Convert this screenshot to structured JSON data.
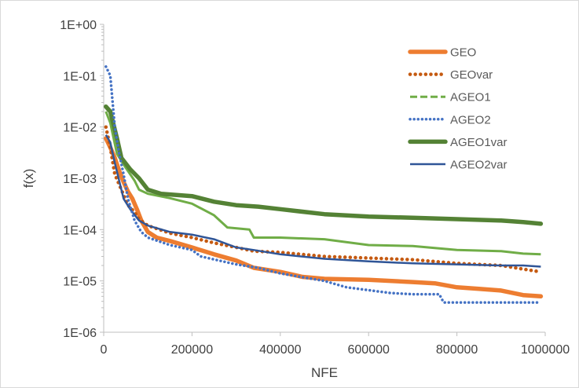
{
  "chart_data": {
    "type": "line",
    "title": "",
    "xlabel": "NFE",
    "ylabel": "f(x)",
    "xlim": [
      0,
      1000000
    ],
    "ylim": [
      1e-06,
      1
    ],
    "yscale": "log",
    "grid": false,
    "legend_position": "top-right",
    "x_ticks": [
      "0",
      "200000",
      "400000",
      "600000",
      "800000",
      "1000000"
    ],
    "y_ticks": [
      "1E-06",
      "1E-05",
      "1E-04",
      "1E-03",
      "1E-02",
      "1E-01",
      "1E+00"
    ],
    "series": [
      {
        "name": "GEO",
        "color": "#ed7d31",
        "style": "solid-thick",
        "points": [
          [
            5000,
            0.006
          ],
          [
            15000,
            0.004
          ],
          [
            25000,
            0.0025
          ],
          [
            35000,
            0.0014
          ],
          [
            45000,
            0.00085
          ],
          [
            55000,
            0.00055
          ],
          [
            65000,
            0.0004
          ],
          [
            75000,
            0.00025
          ],
          [
            85000,
            0.00015
          ],
          [
            100000,
            9e-05
          ],
          [
            120000,
            7e-05
          ],
          [
            150000,
            6e-05
          ],
          [
            200000,
            4.5e-05
          ],
          [
            250000,
            3.3e-05
          ],
          [
            300000,
            2.5e-05
          ],
          [
            340000,
            1.8e-05
          ],
          [
            400000,
            1.5e-05
          ],
          [
            450000,
            1.2e-05
          ],
          [
            500000,
            1.1e-05
          ],
          [
            600000,
            1.05e-05
          ],
          [
            700000,
            9.5e-06
          ],
          [
            750000,
            9e-06
          ],
          [
            800000,
            7.5e-06
          ],
          [
            850000,
            7e-06
          ],
          [
            900000,
            6.5e-06
          ],
          [
            950000,
            5.3e-06
          ],
          [
            990000,
            5e-06
          ]
        ]
      },
      {
        "name": "GEOvar",
        "color": "#c55a11",
        "style": "dotted",
        "points": [
          [
            5000,
            0.01
          ],
          [
            15000,
            0.004
          ],
          [
            25000,
            0.0012
          ],
          [
            40000,
            0.0006
          ],
          [
            55000,
            0.0003
          ],
          [
            70000,
            0.00022
          ],
          [
            80000,
            0.00016
          ],
          [
            100000,
            0.00012
          ],
          [
            150000,
            8.5e-05
          ],
          [
            200000,
            7e-05
          ],
          [
            250000,
            5.5e-05
          ],
          [
            300000,
            4.5e-05
          ],
          [
            340000,
            3.8e-05
          ],
          [
            400000,
            3.6e-05
          ],
          [
            500000,
            3e-05
          ],
          [
            600000,
            2.8e-05
          ],
          [
            700000,
            2.6e-05
          ],
          [
            800000,
            2.2e-05
          ],
          [
            900000,
            2e-05
          ],
          [
            950000,
            1.7e-05
          ],
          [
            990000,
            1.5e-05
          ]
        ]
      },
      {
        "name": "AGEO1",
        "color": "#70ad47",
        "style": "solid",
        "points": [
          [
            5000,
            0.02
          ],
          [
            15000,
            0.012
          ],
          [
            30000,
            0.003
          ],
          [
            50000,
            0.0016
          ],
          [
            70000,
            0.0009
          ],
          [
            80000,
            0.0006
          ],
          [
            100000,
            0.0005
          ],
          [
            150000,
            0.00041
          ],
          [
            200000,
            0.00032
          ],
          [
            250000,
            0.00019
          ],
          [
            280000,
            0.00011
          ],
          [
            330000,
            0.0001
          ],
          [
            340000,
            7e-05
          ],
          [
            400000,
            7e-05
          ],
          [
            500000,
            6.5e-05
          ],
          [
            600000,
            5e-05
          ],
          [
            700000,
            4.8e-05
          ],
          [
            800000,
            4e-05
          ],
          [
            900000,
            3.8e-05
          ],
          [
            950000,
            3.4e-05
          ],
          [
            990000,
            3.3e-05
          ]
        ]
      },
      {
        "name": "AGEO2",
        "color": "#4472c4",
        "style": "dotted",
        "points": [
          [
            5000,
            0.15
          ],
          [
            15000,
            0.1
          ],
          [
            25000,
            0.01
          ],
          [
            35000,
            0.003
          ],
          [
            45000,
            0.0012
          ],
          [
            55000,
            0.0004
          ],
          [
            70000,
            0.00015
          ],
          [
            85000,
            9e-05
          ],
          [
            100000,
            7e-05
          ],
          [
            150000,
            5e-05
          ],
          [
            200000,
            4e-05
          ],
          [
            220000,
            3e-05
          ],
          [
            300000,
            2.1e-05
          ],
          [
            350000,
            1.8e-05
          ],
          [
            400000,
            1.4e-05
          ],
          [
            500000,
            1e-05
          ],
          [
            550000,
            7.5e-06
          ],
          [
            650000,
            5.8e-06
          ],
          [
            700000,
            5.5e-06
          ],
          [
            760000,
            5.5e-06
          ],
          [
            770000,
            3.8e-06
          ],
          [
            990000,
            3.8e-06
          ]
        ]
      },
      {
        "name": "AGEO1var",
        "color": "#548235",
        "style": "solid-thick",
        "points": [
          [
            5000,
            0.025
          ],
          [
            15000,
            0.02
          ],
          [
            30000,
            0.006
          ],
          [
            40000,
            0.0025
          ],
          [
            60000,
            0.0015
          ],
          [
            80000,
            0.001
          ],
          [
            100000,
            0.0006
          ],
          [
            130000,
            0.0005
          ],
          [
            200000,
            0.00045
          ],
          [
            250000,
            0.00035
          ],
          [
            300000,
            0.0003
          ],
          [
            350000,
            0.00028
          ],
          [
            400000,
            0.00025
          ],
          [
            500000,
            0.0002
          ],
          [
            600000,
            0.00018
          ],
          [
            700000,
            0.00017
          ],
          [
            800000,
            0.00016
          ],
          [
            900000,
            0.00015
          ],
          [
            950000,
            0.00014
          ],
          [
            990000,
            0.00013
          ]
        ]
      },
      {
        "name": "AGEO2var",
        "color": "#2f5597",
        "style": "solid",
        "points": [
          [
            5000,
            0.007
          ],
          [
            15000,
            0.005
          ],
          [
            25000,
            0.002
          ],
          [
            35000,
            0.0009
          ],
          [
            45000,
            0.0004
          ],
          [
            60000,
            0.00025
          ],
          [
            80000,
            0.00015
          ],
          [
            100000,
            0.00012
          ],
          [
            150000,
            9e-05
          ],
          [
            200000,
            8e-05
          ],
          [
            250000,
            6.5e-05
          ],
          [
            300000,
            4.5e-05
          ],
          [
            340000,
            4e-05
          ],
          [
            400000,
            3.3e-05
          ],
          [
            500000,
            2.7e-05
          ],
          [
            600000,
            2.4e-05
          ],
          [
            700000,
            2.2e-05
          ],
          [
            800000,
            2.1e-05
          ],
          [
            900000,
            2e-05
          ],
          [
            950000,
            2e-05
          ],
          [
            990000,
            1.9e-05
          ]
        ]
      }
    ]
  }
}
